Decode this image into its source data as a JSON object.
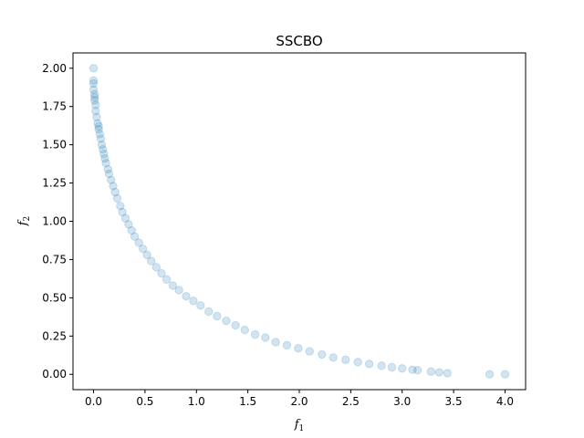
{
  "chart_data": {
    "type": "scatter",
    "title": "SSCBO",
    "xlabel": {
      "base": "f",
      "subscript": "1"
    },
    "ylabel": {
      "base": "f",
      "subscript": "2"
    },
    "xlim": [
      -0.2,
      4.2
    ],
    "ylim": [
      -0.1,
      2.1
    ],
    "xticks": [
      0.0,
      0.5,
      1.0,
      1.5,
      2.0,
      2.5,
      3.0,
      3.5,
      4.0
    ],
    "xtick_labels": [
      "0.0",
      "0.5",
      "1.0",
      "1.5",
      "2.0",
      "2.5",
      "3.0",
      "3.5",
      "4.0"
    ],
    "yticks": [
      0.0,
      0.25,
      0.5,
      0.75,
      1.0,
      1.25,
      1.5,
      1.75,
      2.0
    ],
    "ytick_labels": [
      "0.00",
      "0.25",
      "0.50",
      "0.75",
      "1.00",
      "1.25",
      "1.50",
      "1.75",
      "2.00"
    ],
    "grid": false,
    "marker_color": "#1f77b4",
    "marker_alpha": 0.2,
    "points": [
      [
        0.0,
        2.0
      ],
      [
        0.0,
        1.92
      ],
      [
        0.0,
        1.9
      ],
      [
        0.0,
        1.86
      ],
      [
        0.01,
        1.83
      ],
      [
        0.01,
        1.81
      ],
      [
        0.01,
        1.79
      ],
      [
        0.02,
        1.76
      ],
      [
        0.02,
        1.72
      ],
      [
        0.03,
        1.68
      ],
      [
        0.04,
        1.64
      ],
      [
        0.05,
        1.62
      ],
      [
        0.05,
        1.6
      ],
      [
        0.06,
        1.57
      ],
      [
        0.07,
        1.54
      ],
      [
        0.08,
        1.5
      ],
      [
        0.09,
        1.47
      ],
      [
        0.1,
        1.44
      ],
      [
        0.11,
        1.41
      ],
      [
        0.12,
        1.38
      ],
      [
        0.14,
        1.34
      ],
      [
        0.15,
        1.31
      ],
      [
        0.17,
        1.27
      ],
      [
        0.19,
        1.23
      ],
      [
        0.21,
        1.19
      ],
      [
        0.23,
        1.15
      ],
      [
        0.26,
        1.1
      ],
      [
        0.28,
        1.06
      ],
      [
        0.31,
        1.02
      ],
      [
        0.34,
        0.98
      ],
      [
        0.37,
        0.94
      ],
      [
        0.4,
        0.9
      ],
      [
        0.44,
        0.86
      ],
      [
        0.48,
        0.82
      ],
      [
        0.52,
        0.78
      ],
      [
        0.56,
        0.74
      ],
      [
        0.61,
        0.7
      ],
      [
        0.66,
        0.66
      ],
      [
        0.71,
        0.62
      ],
      [
        0.77,
        0.58
      ],
      [
        0.83,
        0.55
      ],
      [
        0.9,
        0.51
      ],
      [
        0.97,
        0.48
      ],
      [
        1.04,
        0.45
      ],
      [
        1.12,
        0.41
      ],
      [
        1.2,
        0.38
      ],
      [
        1.29,
        0.35
      ],
      [
        1.38,
        0.32
      ],
      [
        1.47,
        0.29
      ],
      [
        1.57,
        0.26
      ],
      [
        1.67,
        0.24
      ],
      [
        1.77,
        0.21
      ],
      [
        1.88,
        0.19
      ],
      [
        1.99,
        0.17
      ],
      [
        2.1,
        0.15
      ],
      [
        2.22,
        0.13
      ],
      [
        2.33,
        0.11
      ],
      [
        2.45,
        0.095
      ],
      [
        2.57,
        0.08
      ],
      [
        2.68,
        0.068
      ],
      [
        2.8,
        0.056
      ],
      [
        2.9,
        0.046
      ],
      [
        3.0,
        0.038
      ],
      [
        3.1,
        0.03
      ],
      [
        3.15,
        0.027
      ],
      [
        3.28,
        0.018
      ],
      [
        3.36,
        0.013
      ],
      [
        3.44,
        0.008
      ],
      [
        3.85,
        0.0
      ],
      [
        4.0,
        0.0
      ]
    ]
  }
}
